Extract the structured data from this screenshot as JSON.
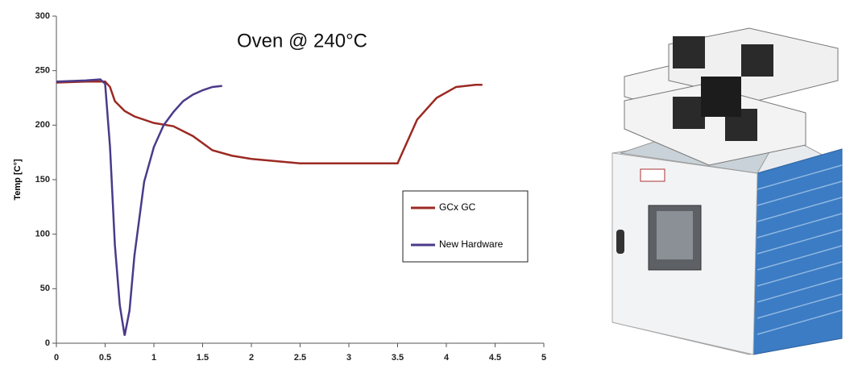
{
  "chart_data": {
    "type": "line",
    "annotation": "Oven @ 240°C",
    "y_label": "Temp [C°]",
    "xlim": [
      0,
      5
    ],
    "xticks": [
      0,
      0.5,
      1,
      1.5,
      2,
      2.5,
      3,
      3.5,
      4,
      4.5,
      5
    ],
    "ylim": [
      0,
      300
    ],
    "yticks": [
      0,
      50,
      100,
      150,
      200,
      250,
      300
    ],
    "series": [
      {
        "name": "GCx GC",
        "color": "#9b2a23",
        "x": [
          0,
          0.3,
          0.5,
          0.55,
          0.6,
          0.7,
          0.8,
          1.0,
          1.2,
          1.4,
          1.6,
          1.8,
          2.0,
          2.5,
          3.0,
          3.5,
          3.55,
          3.7,
          3.9,
          4.1,
          4.3,
          4.37
        ],
        "values": [
          239,
          240,
          240,
          235,
          222,
          213,
          208,
          202,
          199,
          190,
          177,
          172,
          169,
          165,
          165,
          165,
          175,
          205,
          225,
          235,
          237,
          237
        ]
      },
      {
        "name": "New Hardware",
        "color": "#4b3a8a",
        "x": [
          0,
          0.3,
          0.45,
          0.5,
          0.55,
          0.6,
          0.65,
          0.7,
          0.75,
          0.8,
          0.9,
          1.0,
          1.1,
          1.2,
          1.3,
          1.4,
          1.5,
          1.6,
          1.7
        ],
        "values": [
          240,
          241,
          242,
          238,
          180,
          90,
          35,
          7,
          30,
          80,
          148,
          180,
          200,
          212,
          222,
          228,
          232,
          235,
          236
        ]
      }
    ]
  }
}
